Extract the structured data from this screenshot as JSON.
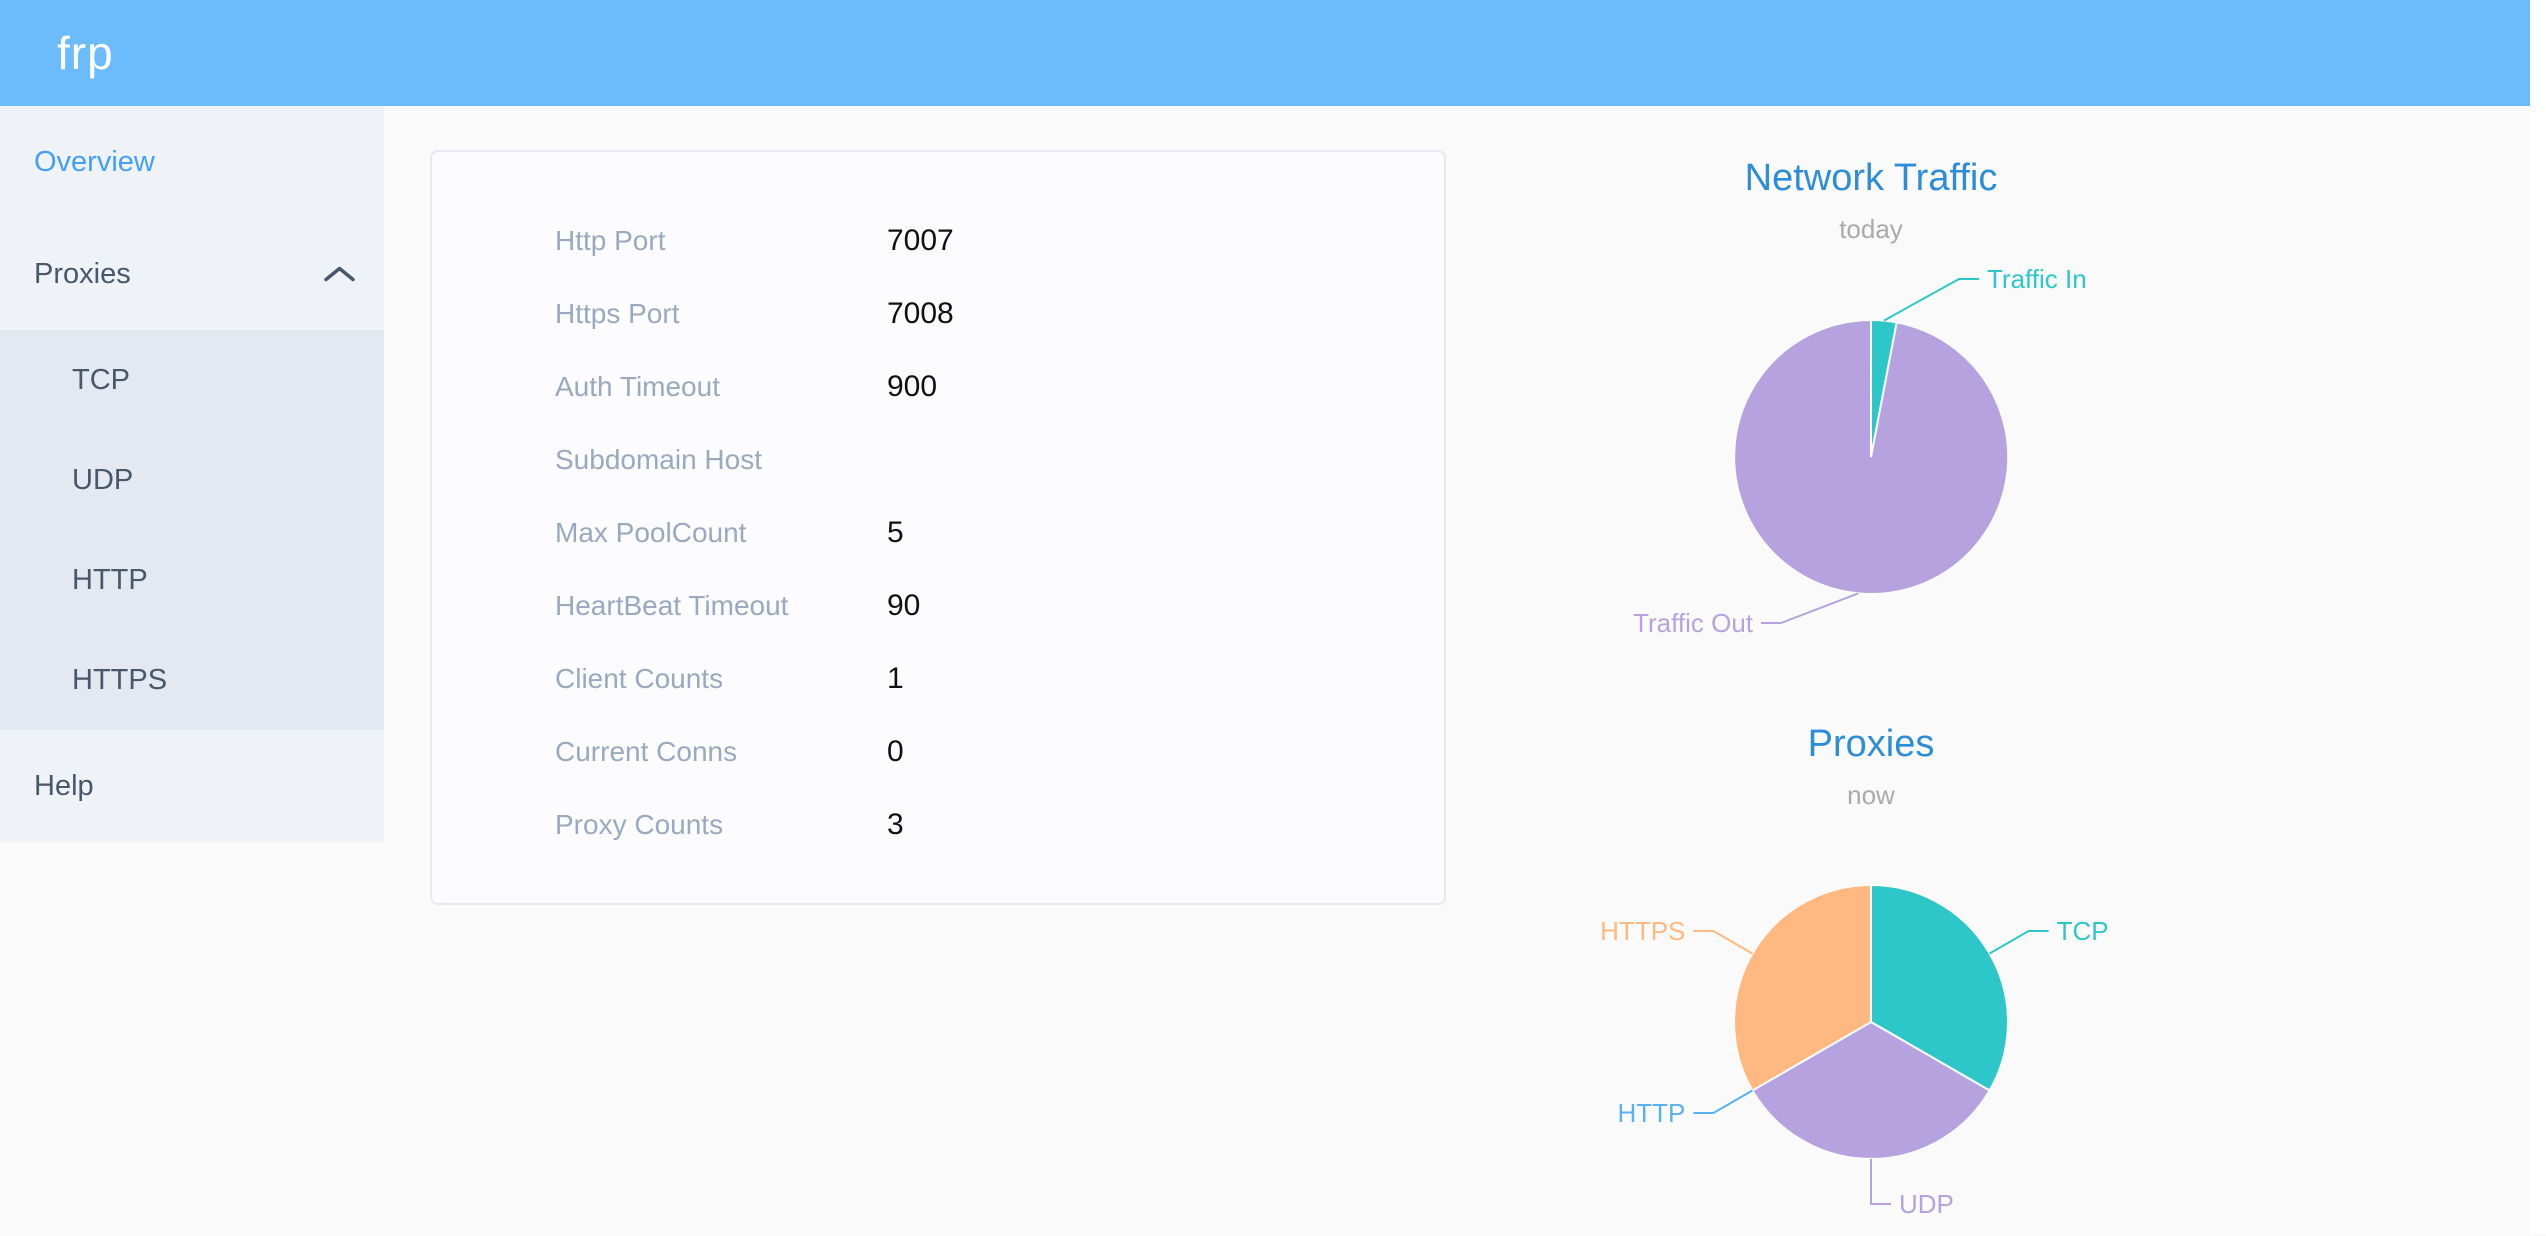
{
  "colors": {
    "header_bg": "#6CBBFB",
    "sidebar_bg": "#EFF2F6",
    "submenu_bg": "#E4E8F1",
    "sidebar_text": "#48576A",
    "sidebar_active": "#43A0F8",
    "chart_title_blue": "#2D8DD8",
    "chart_subtitle_gray": "#AAAAAA",
    "info_label_gray": "#99A9BF",
    "page_bg": "#FAFAFA",
    "card_border": "#E4E9F5"
  },
  "header": {
    "logo_text": "frp"
  },
  "sidebar": {
    "overview": "Overview",
    "proxies": "Proxies",
    "proxies_children": {
      "tcp": "TCP",
      "udp": "UDP",
      "http": "HTTP",
      "https": "HTTPS"
    },
    "help": "Help"
  },
  "server_info": {
    "rows": [
      {
        "label": "Http Port",
        "value": "7007"
      },
      {
        "label": "Https Port",
        "value": "7008"
      },
      {
        "label": "Auth Timeout",
        "value": "900"
      },
      {
        "label": "Subdomain Host",
        "value": ""
      },
      {
        "label": "Max PoolCount",
        "value": "5"
      },
      {
        "label": "HeartBeat Timeout",
        "value": "90"
      },
      {
        "label": "Client Counts",
        "value": "1"
      },
      {
        "label": "Current Conns",
        "value": "0"
      },
      {
        "label": "Proxy Counts",
        "value": "3"
      }
    ]
  },
  "chart_data": [
    {
      "type": "pie",
      "title": "Network Traffic",
      "subtitle": "today",
      "unit": "estimated percent share (tooltip values not visible)",
      "labels": "outside",
      "legend": "none",
      "start_angle_deg_from_top": 0,
      "clockwise": true,
      "slices": [
        {
          "label": "Traffic In",
          "value": 3,
          "color": "#2EC7C9",
          "elbow": [
            88,
            -178
          ]
        },
        {
          "label": "Traffic Out",
          "value": 97,
          "color": "#B6A2DE",
          "elbow": [
            -90,
            166
          ]
        }
      ]
    },
    {
      "type": "pie",
      "title": "Proxies",
      "subtitle": "now",
      "unit": "proxy count",
      "labels": "outside",
      "legend": "none",
      "start_angle_deg_from_top": 0,
      "clockwise": true,
      "slices": [
        {
          "label": "TCP",
          "value": 1,
          "color": "#2EC7C9"
        },
        {
          "label": "UDP",
          "value": 1,
          "color": "#B6A2DE"
        },
        {
          "label": "HTTP",
          "value": 0,
          "color": "#5AB1EF"
        },
        {
          "label": "HTTPS",
          "value": 1,
          "color": "#FFB980"
        }
      ]
    }
  ]
}
